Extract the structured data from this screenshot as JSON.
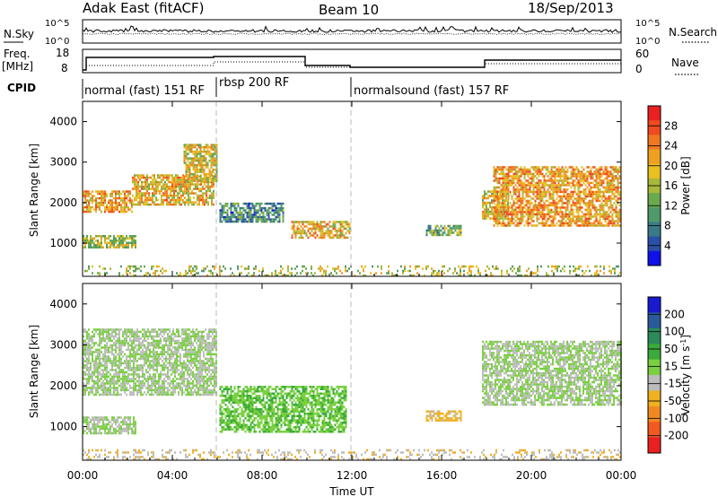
{
  "header": {
    "title_left": "Adak East (fitACF)",
    "title_center": "Beam 10",
    "title_right": "18/Sep/2013"
  },
  "aux_panels": {
    "nsky": {
      "label": "N.Sky",
      "right_label": "N.Search",
      "left_ticks": [
        "10^5",
        "10^0"
      ],
      "right_ticks": [
        "10^5",
        "10^0"
      ]
    },
    "freq": {
      "label_line1": "Freq.",
      "label_line2": "[MHz]",
      "right_label": "Nave",
      "left_ticks": [
        "18",
        "8"
      ],
      "right_ticks": [
        "60",
        "0"
      ]
    },
    "cpid": {
      "label": "CPID",
      "segments": [
        {
          "label": "normal (fast) 151 RF",
          "start_hour": 0,
          "end_hour": 6
        },
        {
          "label": "rbsp 200 RF",
          "start_hour": 6,
          "end_hour": 12
        },
        {
          "label": "normalsound (fast) 157 RF",
          "start_hour": 12,
          "end_hour": 24
        }
      ]
    }
  },
  "chart_data": [
    {
      "type": "heatmap",
      "title": "",
      "xlabel": "Time UT",
      "ylabel": "Slant Range [km]",
      "xlim_hours": [
        0,
        24
      ],
      "x_tick_labels": [
        "00:00",
        "04:00",
        "08:00",
        "12:00",
        "16:00",
        "20:00",
        "00:00"
      ],
      "ylim": [
        180,
        4500
      ],
      "y_ticks": [
        1000,
        2000,
        3000,
        4000
      ],
      "colorbar": {
        "label": "Power [dB]",
        "range": [
          0,
          32
        ],
        "tick_labels": [
          "4",
          "8",
          "12",
          "16",
          "20",
          "24",
          "28"
        ],
        "colors": [
          "#1010e8",
          "#2a4fa8",
          "#3a7a88",
          "#4e9a6a",
          "#6aaa4e",
          "#a8b838",
          "#e8c020",
          "#f0a020",
          "#f07820",
          "#f04a20",
          "#e82020"
        ]
      },
      "scatter_regions": [
        {
          "t0": 0.0,
          "t1": 2.2,
          "r0": 1750,
          "r1": 2300,
          "power_db": 22
        },
        {
          "t0": 2.2,
          "t1": 5.9,
          "r0": 1900,
          "r1": 2700,
          "power_db": 20
        },
        {
          "t0": 4.5,
          "t1": 6.0,
          "r0": 2500,
          "r1": 3450,
          "power_db": 18
        },
        {
          "t0": 0.0,
          "t1": 2.4,
          "r0": 850,
          "r1": 1200,
          "power_db": 16
        },
        {
          "t0": 6.1,
          "t1": 9.0,
          "r0": 1500,
          "r1": 2000,
          "power_db": 9
        },
        {
          "t0": 9.3,
          "t1": 11.9,
          "r0": 1100,
          "r1": 1550,
          "power_db": 20
        },
        {
          "t0": 15.3,
          "t1": 16.9,
          "r0": 1200,
          "r1": 1450,
          "power_db": 12
        },
        {
          "t0": 17.8,
          "t1": 19.0,
          "r0": 1600,
          "r1": 2300,
          "power_db": 18
        },
        {
          "t0": 18.3,
          "t1": 24.0,
          "r0": 1400,
          "r1": 2900,
          "power_db": 22
        },
        {
          "t0": 0.0,
          "t1": 24.0,
          "r0": 200,
          "r1": 450,
          "power_db": 16
        }
      ]
    },
    {
      "type": "heatmap",
      "title": "",
      "xlabel": "Time UT",
      "ylabel": "Slant Range [km]",
      "xlim_hours": [
        0,
        24
      ],
      "x_tick_labels": [
        "00:00",
        "04:00",
        "08:00",
        "12:00",
        "16:00",
        "20:00",
        "00:00"
      ],
      "ylim": [
        180,
        4500
      ],
      "y_ticks": [
        1000,
        2000,
        3000,
        4000
      ],
      "colorbar": {
        "label": "Velocity [m s^-1]",
        "range": [
          -250,
          250
        ],
        "tick_labels": [
          "200",
          "100",
          "50",
          "15",
          "-15",
          "-50",
          "-100",
          "-200"
        ],
        "colors": [
          "#1a1ad0",
          "#2a5a9a",
          "#2a8a5a",
          "#3aaa3a",
          "#7ad040",
          "#bcbcbc",
          "#f0b020",
          "#f08a20",
          "#f05a20",
          "#e82020"
        ]
      },
      "scatter_regions": [
        {
          "t0": 0.0,
          "t1": 6.0,
          "r0": 1750,
          "r1": 3400,
          "velocity": 0
        },
        {
          "t0": 0.0,
          "t1": 2.4,
          "r0": 800,
          "r1": 1250,
          "velocity": 0
        },
        {
          "t0": 6.1,
          "t1": 11.8,
          "r0": 850,
          "r1": 2000,
          "velocity": 40
        },
        {
          "t0": 15.3,
          "t1": 16.9,
          "r0": 1150,
          "r1": 1400,
          "velocity": -60
        },
        {
          "t0": 17.8,
          "t1": 24.0,
          "r0": 1500,
          "r1": 3100,
          "velocity": 0
        },
        {
          "t0": 0.0,
          "t1": 24.0,
          "r0": 200,
          "r1": 450,
          "velocity": -40
        }
      ]
    }
  ]
}
